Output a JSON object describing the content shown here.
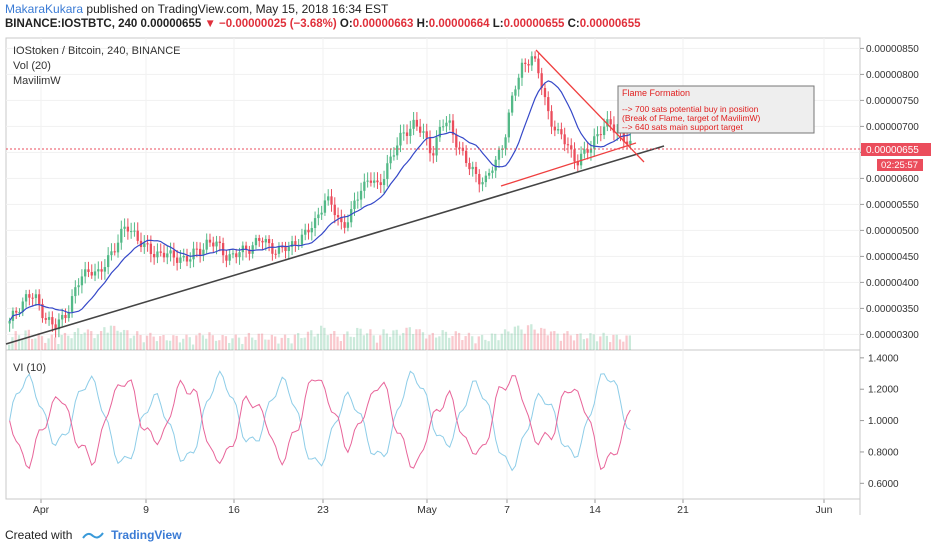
{
  "header": {
    "author": "MakaraKukara",
    "published": "published on TradingView.com, May 15, 2018 16:34 EST",
    "symbol": "BINANCE:IOSTBTC, 240",
    "last": "0.00000655",
    "change": "−0.00000025 (−3.68%)",
    "o_label": "O:",
    "o": "0.00000663",
    "h_label": "H:",
    "h": "0.00000664",
    "l_label": "L:",
    "l": "0.00000655",
    "c_label": "C:",
    "c": "0.00000655"
  },
  "legend": {
    "title": "IOStoken / Bitcoin, 240, BINANCE",
    "vol": "Vol (20)",
    "ma": "MavilimW",
    "vi": "VI (10)"
  },
  "annotation": {
    "title": "Flame Formation",
    "line1": "--> 700 sats potential buy in position",
    "line2": "(Break of Flame, target of MavilimW)",
    "line3": "--> 640 sats main support target"
  },
  "price_tag": "0.00000655",
  "countdown": "02:25:57",
  "footer": {
    "created": "Created with",
    "brand": "TradingView"
  },
  "colors": {
    "up": "#53b987",
    "down": "#eb4d5c",
    "ma": "#3548c8",
    "vi_plus": "#8ecde8",
    "vi_minus": "#e8659a",
    "trend": "#444444",
    "flame": "#ef3f3f"
  },
  "chart_data": [
    {
      "type": "candlestick",
      "ylim": [
        2.7e-06,
        8.7e-06
      ],
      "ticks": [
        "0.00000850",
        "0.00000800",
        "0.00000750",
        "0.00000700",
        "0.00000650",
        "0.00000600",
        "0.00000550",
        "0.00000500",
        "0.00000450",
        "0.00000400",
        "0.00000350",
        "0.00000300"
      ],
      "x_ticks": [
        "Apr",
        "9",
        "16",
        "23",
        "May",
        "7",
        "14",
        "21",
        "Jun"
      ],
      "close_path": [
        3.2,
        3.55,
        3.75,
        3.65,
        3.35,
        3.1,
        3.35,
        3.7,
        4.1,
        4.3,
        4.1,
        4.5,
        4.8,
        5.05,
        4.95,
        4.65,
        4.55,
        4.6,
        4.45,
        4.5,
        4.45,
        4.6,
        4.8,
        4.7,
        4.55,
        4.5,
        4.6,
        4.75,
        4.8,
        4.7,
        4.6,
        4.65,
        4.85,
        4.9,
        5.2,
        5.6,
        5.4,
        5.1,
        5.3,
        5.8,
        6.05,
        5.75,
        6.3,
        6.6,
        6.9,
        7.1,
        6.8,
        6.5,
        7.05,
        7.0,
        6.6,
        6.2,
        6.05,
        5.95,
        6.3,
        6.8,
        7.6,
        8.2,
        8.35,
        7.9,
        7.2,
        6.8,
        6.7,
        6.3,
        6.45,
        6.8,
        6.95,
        7.05,
        6.8,
        6.6
      ],
      "volume_level": [
        0.3,
        0.5,
        0.6,
        0.4,
        0.3,
        0.3,
        0.4,
        0.5,
        0.7,
        0.6,
        0.5,
        0.9,
        0.8,
        0.6,
        0.5,
        0.4,
        0.4,
        0.3,
        0.3,
        0.3,
        0.3,
        0.4,
        0.5,
        0.3,
        0.3,
        0.3,
        0.3,
        0.4,
        0.4,
        0.3,
        0.3,
        0.3,
        0.4,
        0.5,
        0.6,
        0.8,
        0.5,
        0.4,
        0.5,
        0.7,
        0.6,
        0.4,
        0.6,
        0.6,
        0.7,
        0.8,
        0.6,
        0.4,
        0.6,
        0.5,
        0.5,
        0.4,
        0.3,
        0.3,
        0.4,
        0.6,
        0.9,
        0.8,
        0.9,
        0.7,
        0.7,
        0.5,
        0.5,
        0.4,
        0.4,
        0.4,
        0.4,
        0.4,
        0.3,
        0.3
      ]
    },
    {
      "type": "line",
      "title": "VI (10)",
      "ylim": [
        0.5,
        1.45
      ],
      "ticks": [
        "1.4000",
        "1.2000",
        "1.0000",
        "0.8000",
        "0.6000"
      ]
    }
  ]
}
